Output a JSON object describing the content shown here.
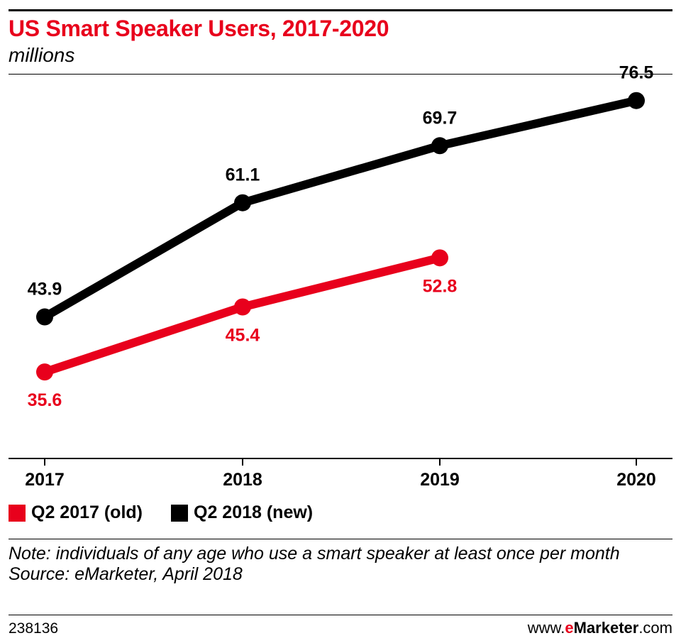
{
  "chart_data": {
    "type": "line",
    "title": "US Smart Speaker Users, 2017-2020",
    "subtitle": "millions",
    "categories": [
      "2017",
      "2018",
      "2019",
      "2020"
    ],
    "series": [
      {
        "name": "Q2 2017 (old)",
        "color": "#e8001c",
        "values": [
          35.6,
          45.4,
          52.8,
          null
        ],
        "labels": [
          "35.6",
          "45.4",
          "52.8",
          ""
        ],
        "label_position": "below"
      },
      {
        "name": "Q2 2018 (new)",
        "color": "#000000",
        "values": [
          43.9,
          61.1,
          69.7,
          76.5
        ],
        "labels": [
          "43.9",
          "61.1",
          "69.7",
          "76.5"
        ],
        "label_position": "above"
      }
    ],
    "ylim": [
      20,
      80
    ],
    "grid": false,
    "legend_placement": "bottom-left"
  },
  "footer": {
    "note": "Note: individuals of any age who use a smart speaker at least once per month",
    "source": "Source: eMarketer, April 2018",
    "chart_id": "238136",
    "brand_prefix": "www.",
    "brand_e": "e",
    "brand_name": "Marketer",
    "brand_suffix": ".com"
  }
}
